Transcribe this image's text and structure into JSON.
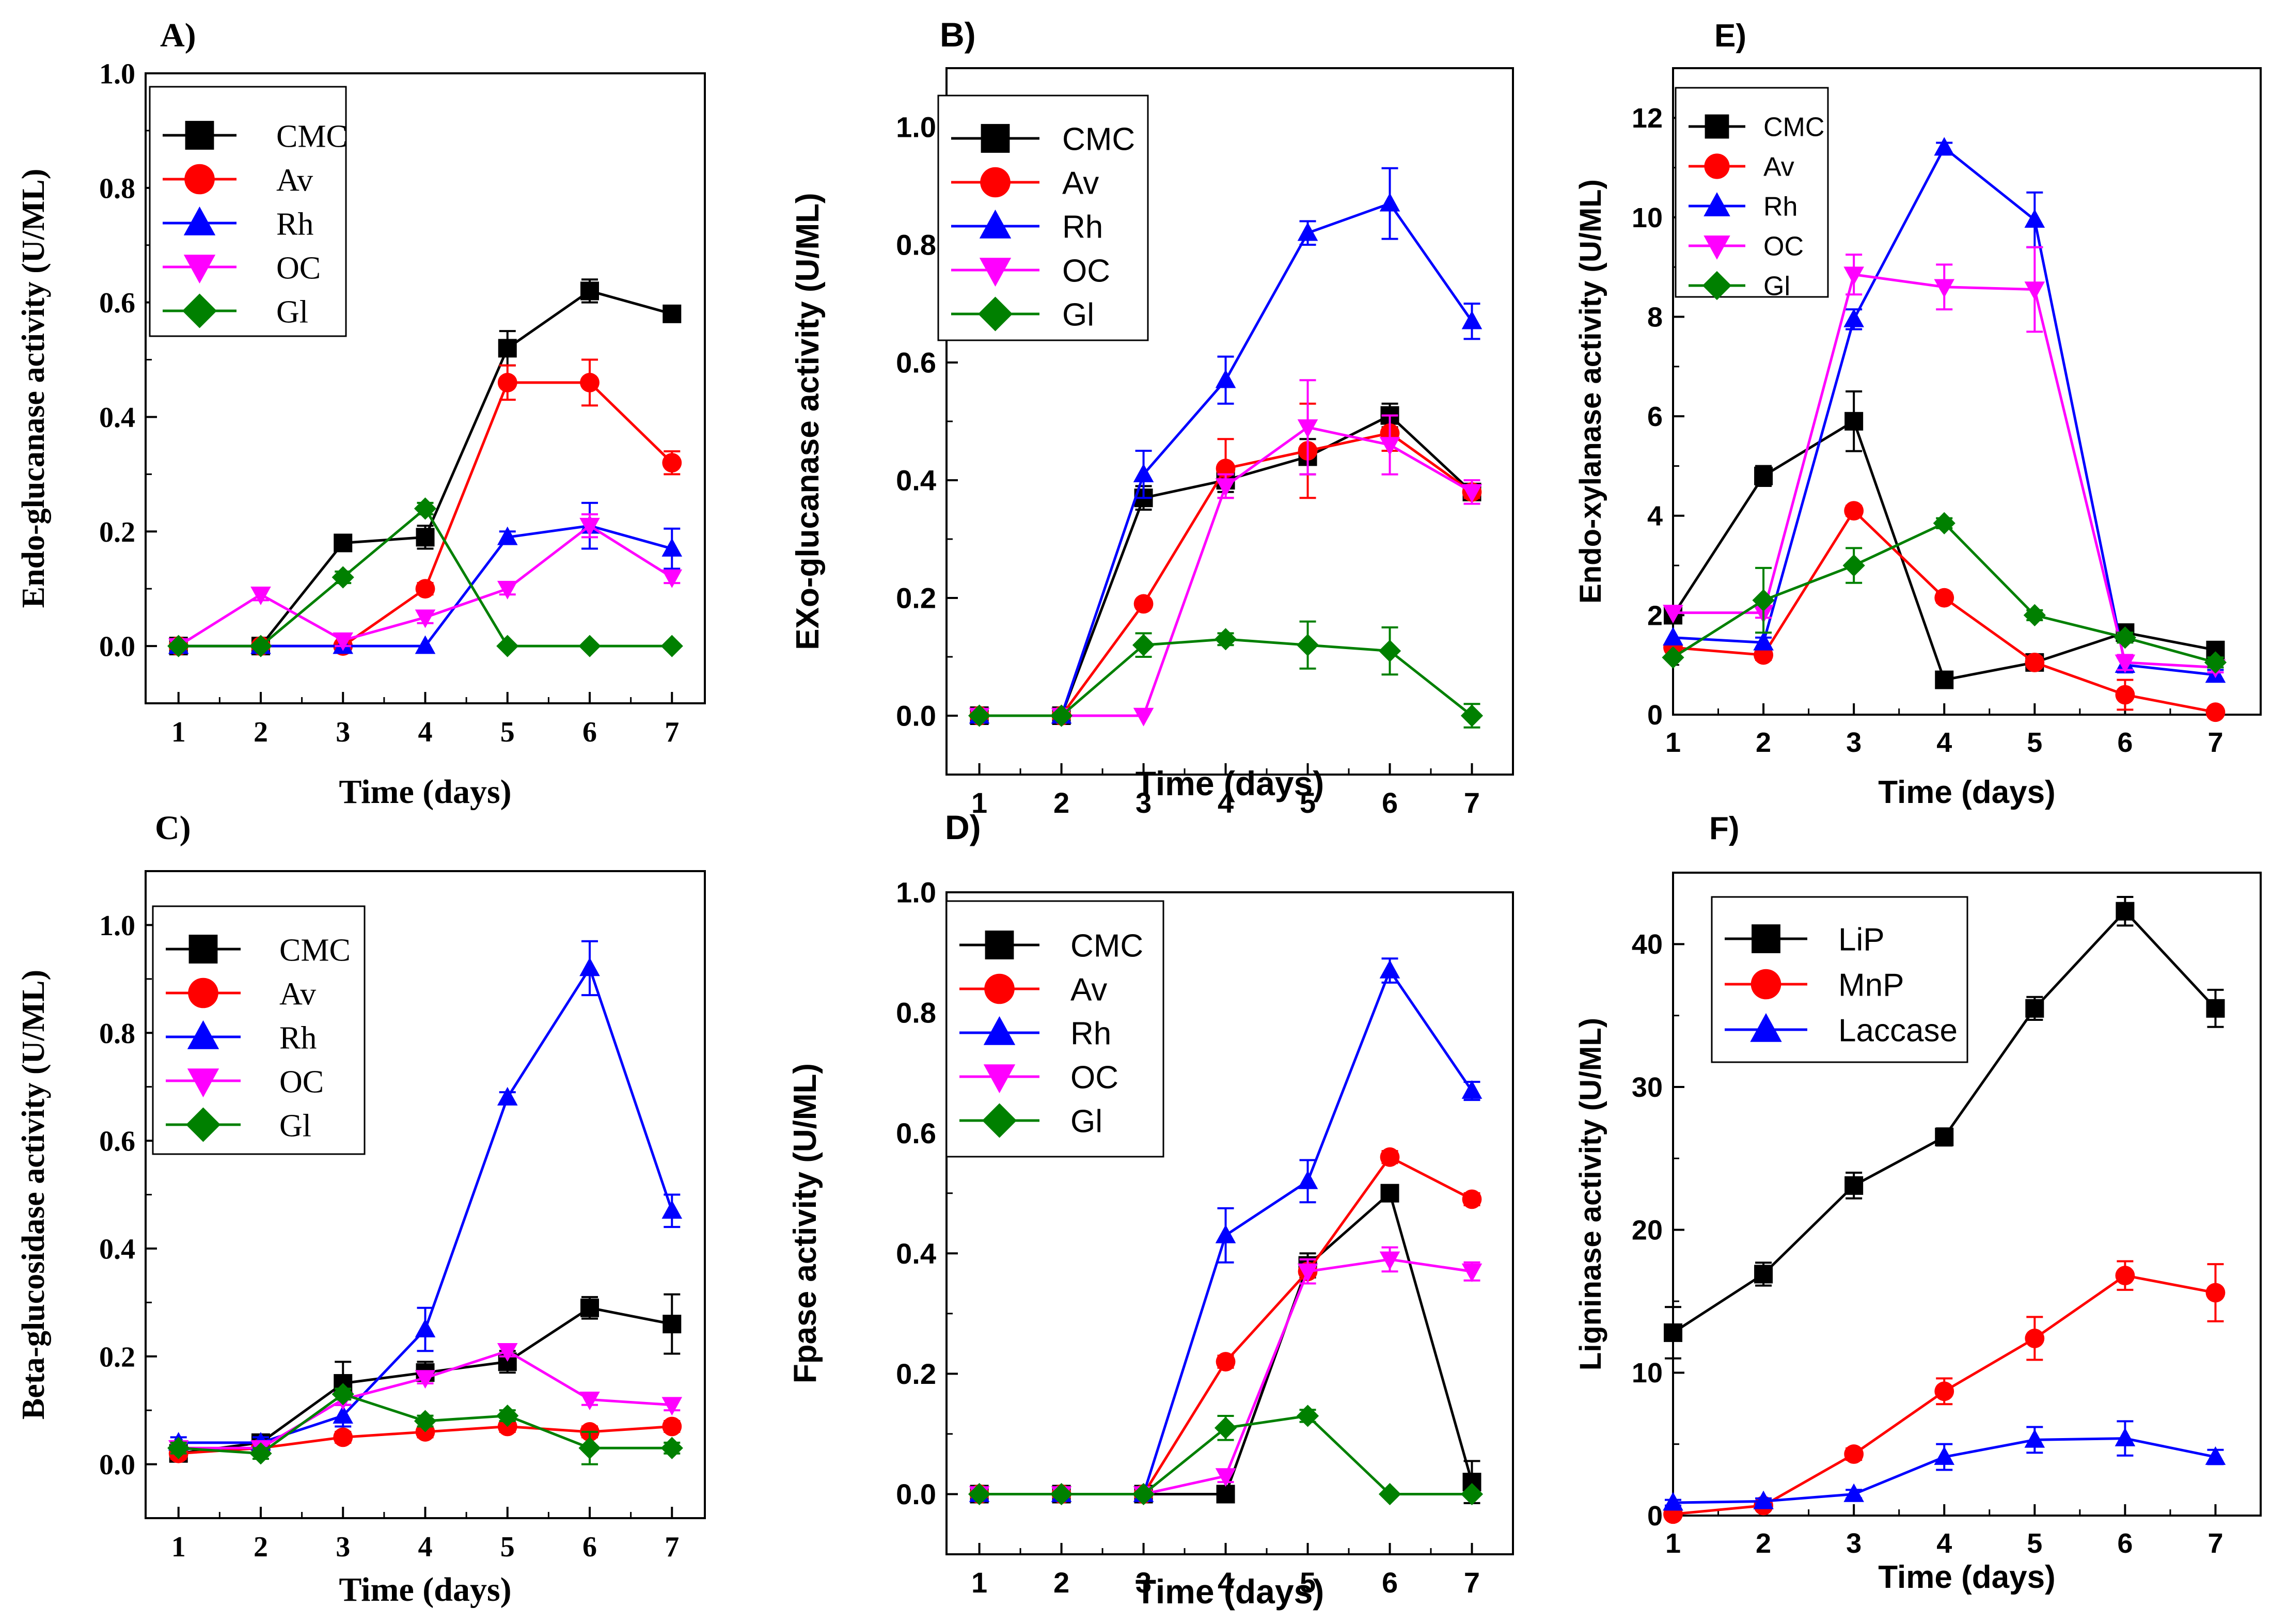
{
  "chart_data": [
    {
      "id": "A",
      "panel_label": "A)",
      "type": "line",
      "xlabel": "Time (days)",
      "ylabel": "Endo-glucanase activity (U/ML)",
      "x": [
        1,
        2,
        3,
        4,
        5,
        6,
        7
      ],
      "xlim": [
        0.6,
        7.4
      ],
      "ylim": [
        -0.1,
        1.0
      ],
      "yticks": [
        0.0,
        0.2,
        0.4,
        0.6,
        0.8,
        1.0
      ],
      "ytick_labels": [
        "0.0",
        "0.2",
        "0.4",
        "0.6",
        "0.8",
        "1.0"
      ],
      "legend": "top-left",
      "series": [
        {
          "name": "CMC",
          "color": "#000000",
          "marker": "square",
          "values": [
            0.0,
            0.0,
            0.18,
            0.19,
            0.52,
            0.62,
            0.58
          ],
          "errors": [
            0,
            0,
            0.01,
            0.02,
            0.03,
            0.02,
            0.01
          ]
        },
        {
          "name": "Av",
          "color": "#ff0000",
          "marker": "circle",
          "values": [
            0.0,
            0.0,
            0.0,
            0.1,
            0.46,
            0.46,
            0.32
          ],
          "errors": [
            0,
            0,
            0,
            0.01,
            0.03,
            0.04,
            0.02
          ]
        },
        {
          "name": "Rh",
          "color": "#0000ff",
          "marker": "triangle-up",
          "values": [
            0.0,
            0.0,
            0.0,
            0.0,
            0.19,
            0.21,
            0.17
          ],
          "errors": [
            0,
            0,
            0,
            0,
            0.01,
            0.04,
            0.035
          ]
        },
        {
          "name": "OC",
          "color": "#ff00ff",
          "marker": "triangle-down",
          "values": [
            0.0,
            0.09,
            0.01,
            0.05,
            0.1,
            0.21,
            0.12
          ],
          "errors": [
            0,
            0.01,
            0.01,
            0.01,
            0.01,
            0.02,
            0.01
          ]
        },
        {
          "name": "Gl",
          "color": "#008000",
          "marker": "diamond",
          "values": [
            0.0,
            0.0,
            0.12,
            0.24,
            0.0,
            0.0,
            0.0
          ],
          "errors": [
            0,
            0,
            0.01,
            0.01,
            0,
            0,
            0
          ]
        }
      ]
    },
    {
      "id": "B",
      "panel_label": "B)",
      "type": "line",
      "xlabel": "Time (days)",
      "ylabel": "EXo-glucanase activity (U/ML)",
      "x": [
        1,
        2,
        3,
        4,
        5,
        6,
        7
      ],
      "xlim": [
        0.6,
        7.5
      ],
      "ylim": [
        -0.1,
        1.1
      ],
      "yticks": [
        0.0,
        0.2,
        0.4,
        0.6,
        0.8,
        1.0
      ],
      "ytick_labels": [
        "0.0",
        "0.2",
        "0.4",
        "0.6",
        "0.8",
        "1.0"
      ],
      "legend": "top-left",
      "series": [
        {
          "name": "CMC",
          "color": "#000000",
          "marker": "square",
          "values": [
            0.0,
            0.0,
            0.37,
            0.4,
            0.44,
            0.51,
            0.38
          ],
          "errors": [
            0,
            0,
            0.02,
            0.02,
            0.03,
            0.02,
            0.01
          ]
        },
        {
          "name": "Av",
          "color": "#ff0000",
          "marker": "circle",
          "values": [
            0.0,
            0.0,
            0.19,
            0.42,
            0.45,
            0.48,
            0.38
          ],
          "errors": [
            0,
            0,
            0,
            0.05,
            0.08,
            0.03,
            0.01
          ]
        },
        {
          "name": "Rh",
          "color": "#0000ff",
          "marker": "triangle-up",
          "values": [
            0.0,
            0.0,
            0.41,
            0.57,
            0.82,
            0.87,
            0.67
          ],
          "errors": [
            0,
            0,
            0.04,
            0.04,
            0.02,
            0.06,
            0.03
          ]
        },
        {
          "name": "OC",
          "color": "#ff00ff",
          "marker": "triangle-down",
          "values": [
            0.0,
            0.0,
            0.0,
            0.39,
            0.49,
            0.46,
            0.38
          ],
          "errors": [
            0,
            0,
            0,
            0.02,
            0.08,
            0.05,
            0.02
          ]
        },
        {
          "name": "Gl",
          "color": "#008000",
          "marker": "diamond",
          "values": [
            0.0,
            0.0,
            0.12,
            0.13,
            0.12,
            0.11,
            0.0
          ],
          "errors": [
            0,
            0,
            0.02,
            0.01,
            0.04,
            0.04,
            0.02
          ]
        }
      ]
    },
    {
      "id": "E",
      "panel_label": "E)",
      "type": "line",
      "xlabel": "Time (days)",
      "ylabel": "Endo-xylanase activity (U/ML)",
      "x": [
        1,
        2,
        3,
        4,
        5,
        6,
        7
      ],
      "xlim": [
        1,
        7.5
      ],
      "ylim": [
        0,
        13
      ],
      "yticks": [
        0,
        2,
        4,
        6,
        8,
        10,
        12
      ],
      "ytick_labels": [
        "0",
        "2",
        "4",
        "6",
        "8",
        "10",
        "12"
      ],
      "legend": "top-left",
      "series": [
        {
          "name": "CMC",
          "color": "#000000",
          "marker": "square",
          "values": [
            2.0,
            4.8,
            5.9,
            0.7,
            1.05,
            1.65,
            1.3
          ],
          "errors": [
            0,
            0.2,
            0.6,
            0.1,
            0.1,
            0.1,
            0.1
          ]
        },
        {
          "name": "Av",
          "color": "#ff0000",
          "marker": "circle",
          "values": [
            1.35,
            1.2,
            4.1,
            2.35,
            1.05,
            0.4,
            0.05
          ],
          "errors": [
            0,
            0.1,
            0.1,
            0.1,
            0.1,
            0.3,
            0.05
          ]
        },
        {
          "name": "Rh",
          "color": "#0000ff",
          "marker": "triangle-up",
          "values": [
            1.55,
            1.45,
            7.95,
            11.4,
            9.95,
            1.0,
            0.8
          ],
          "errors": [
            0,
            0.1,
            0.2,
            0.1,
            0.55,
            0.15,
            0.1
          ]
        },
        {
          "name": "OC",
          "color": "#ff00ff",
          "marker": "triangle-down",
          "values": [
            2.05,
            2.05,
            8.85,
            8.6,
            8.55,
            1.05,
            0.95
          ],
          "errors": [
            0,
            0.1,
            0.4,
            0.45,
            0.85,
            0.15,
            0.1
          ]
        },
        {
          "name": "Gl",
          "color": "#008000",
          "marker": "diamond",
          "values": [
            1.15,
            2.3,
            3.0,
            3.85,
            2.0,
            1.55,
            1.05
          ],
          "errors": [
            0,
            0.65,
            0.35,
            0.1,
            0.1,
            0.1,
            0.1
          ]
        }
      ]
    },
    {
      "id": "C",
      "panel_label": "C)",
      "type": "line",
      "xlabel": "Time (days)",
      "ylabel": "Beta-glucosidase activity (U/ML)",
      "x": [
        1,
        2,
        3,
        4,
        5,
        6,
        7
      ],
      "xlim": [
        0.6,
        7.4
      ],
      "ylim": [
        -0.1,
        1.1
      ],
      "yticks": [
        0.0,
        0.2,
        0.4,
        0.6,
        0.8,
        1.0
      ],
      "ytick_labels": [
        "0.0",
        "0.2",
        "0.4",
        "0.6",
        "0.8",
        "1.0"
      ],
      "legend": "top-left",
      "series": [
        {
          "name": "CMC",
          "color": "#000000",
          "marker": "square",
          "values": [
            0.02,
            0.04,
            0.15,
            0.17,
            0.19,
            0.29,
            0.26
          ],
          "errors": [
            0.01,
            0.01,
            0.04,
            0.02,
            0.02,
            0.02,
            0.055
          ]
        },
        {
          "name": "Av",
          "color": "#ff0000",
          "marker": "circle",
          "values": [
            0.02,
            0.03,
            0.05,
            0.06,
            0.07,
            0.06,
            0.07
          ],
          "errors": [
            0.01,
            0.01,
            0.01,
            0.01,
            0.01,
            0.01,
            0.01
          ]
        },
        {
          "name": "Rh",
          "color": "#0000ff",
          "marker": "triangle-up",
          "values": [
            0.04,
            0.04,
            0.09,
            0.25,
            0.68,
            0.92,
            0.47
          ],
          "errors": [
            0.01,
            0.01,
            0.02,
            0.04,
            0.01,
            0.05,
            0.03
          ]
        },
        {
          "name": "OC",
          "color": "#ff00ff",
          "marker": "triangle-down",
          "values": [
            0.03,
            0.03,
            0.12,
            0.16,
            0.21,
            0.12,
            0.11
          ],
          "errors": [
            0.01,
            0.01,
            0.01,
            0.01,
            0.01,
            0.01,
            0.01
          ]
        },
        {
          "name": "Gl",
          "color": "#008000",
          "marker": "diamond",
          "values": [
            0.03,
            0.02,
            0.13,
            0.08,
            0.09,
            0.03,
            0.03
          ],
          "errors": [
            0.01,
            0.01,
            0.01,
            0.01,
            0.01,
            0.03,
            0.01
          ]
        }
      ]
    },
    {
      "id": "D",
      "panel_label": "D)",
      "type": "line",
      "xlabel": "Time (days)",
      "ylabel": "Fpase activity (U/ML)",
      "x": [
        1,
        2,
        3,
        4,
        5,
        6,
        7
      ],
      "xlim": [
        0.6,
        7.5
      ],
      "ylim": [
        -0.1,
        1.0
      ],
      "yticks": [
        0.0,
        0.2,
        0.4,
        0.6,
        0.8,
        1.0
      ],
      "ytick_labels": [
        "0.0",
        "0.2",
        "0.4",
        "0.6",
        "0.8",
        "1.0"
      ],
      "legend": "top-left",
      "series": [
        {
          "name": "CMC",
          "color": "#000000",
          "marker": "square",
          "values": [
            0.0,
            0.0,
            0.0,
            0.0,
            0.38,
            0.5,
            0.02
          ],
          "errors": [
            0,
            0,
            0,
            0,
            0.02,
            0.01,
            0.035
          ]
        },
        {
          "name": "Av",
          "color": "#ff0000",
          "marker": "circle",
          "values": [
            0.0,
            0.0,
            0.0,
            0.22,
            0.37,
            0.56,
            0.49
          ],
          "errors": [
            0,
            0,
            0,
            0.01,
            0.02,
            0.01,
            0.01
          ]
        },
        {
          "name": "Rh",
          "color": "#0000ff",
          "marker": "triangle-up",
          "values": [
            0.0,
            0.0,
            0.0,
            0.43,
            0.52,
            0.87,
            0.67
          ],
          "errors": [
            0,
            0,
            0,
            0.045,
            0.035,
            0.02,
            0.015
          ]
        },
        {
          "name": "OC",
          "color": "#ff00ff",
          "marker": "triangle-down",
          "values": [
            0.0,
            0.0,
            0.0,
            0.03,
            0.37,
            0.39,
            0.37
          ],
          "errors": [
            0,
            0,
            0,
            0.01,
            0.02,
            0.02,
            0.015
          ]
        },
        {
          "name": "Gl",
          "color": "#008000",
          "marker": "diamond",
          "values": [
            0.0,
            0.0,
            0.0,
            0.11,
            0.13,
            0.0,
            0.0
          ],
          "errors": [
            0,
            0,
            0,
            0.02,
            0.01,
            0,
            0
          ]
        }
      ]
    },
    {
      "id": "F",
      "panel_label": "F)",
      "type": "line",
      "xlabel": "Time (days)",
      "ylabel": "Ligninase activity (U/ML)",
      "x": [
        1,
        2,
        3,
        4,
        5,
        6,
        7
      ],
      "xlim": [
        1,
        7.5
      ],
      "ylim": [
        0,
        45
      ],
      "yticks": [
        0,
        10,
        20,
        30,
        40
      ],
      "ytick_labels": [
        "0",
        "10",
        "20",
        "30",
        "40"
      ],
      "legend": "top-left",
      "series": [
        {
          "name": "LiP",
          "color": "#000000",
          "marker": "square",
          "values": [
            12.8,
            16.9,
            23.1,
            26.5,
            35.5,
            42.3,
            35.5
          ],
          "errors": [
            1.8,
            0.8,
            0.9,
            0.6,
            0.8,
            1.0,
            1.3
          ]
        },
        {
          "name": "MnP",
          "color": "#ff0000",
          "marker": "circle",
          "values": [
            0.1,
            0.7,
            4.3,
            8.7,
            12.4,
            16.8,
            15.6
          ],
          "errors": [
            0.2,
            0.2,
            0.4,
            0.9,
            1.5,
            1.0,
            2.0
          ]
        },
        {
          "name": "Laccase",
          "color": "#0000ff",
          "marker": "triangle-up",
          "values": [
            0.9,
            1.0,
            1.5,
            4.1,
            5.3,
            5.4,
            4.1
          ],
          "errors": [
            0.2,
            0.2,
            0.3,
            0.9,
            0.9,
            1.2,
            0.5
          ]
        }
      ]
    }
  ]
}
